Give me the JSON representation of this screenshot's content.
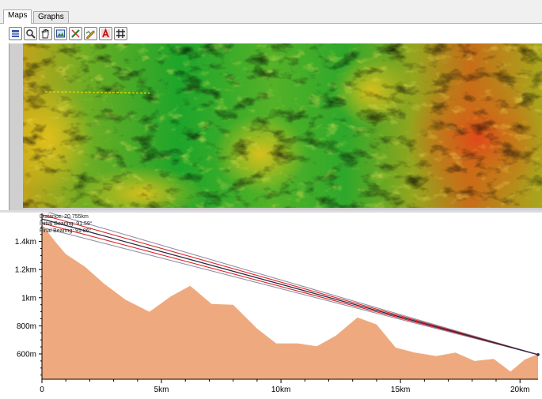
{
  "tabs": [
    {
      "label": "Maps",
      "active": true
    },
    {
      "label": "Graphs",
      "active": false
    }
  ],
  "toolbar": {
    "tools": [
      {
        "icon": "layers-icon"
      },
      {
        "icon": "zoom-icon"
      },
      {
        "icon": "pan-hand-icon"
      },
      {
        "icon": "full-extent-icon"
      },
      {
        "icon": "measure-icon"
      },
      {
        "icon": "profile-pen-icon"
      },
      {
        "icon": "label-icon"
      },
      {
        "icon": "grid-icon"
      }
    ]
  },
  "profile_info": {
    "distance": "Distance: 20.755km",
    "initial_bearing": "Initial Bearing: 91.59°",
    "final_bearing": "Final Bearing: 91.86°"
  },
  "colors": {
    "terrain_fill": "#eeaa7e",
    "line_of_sight": "#2a2a44",
    "fresnel_inner": "#e02020",
    "fresnel_outer": "#9090a8",
    "map_low": "#1fa82a",
    "map_mid": "#d8c21a",
    "map_high": "#cc5a16",
    "transect": "#e8e000"
  },
  "chart_data": {
    "type": "area",
    "xlabel": "",
    "ylabel": "",
    "xlim": [
      0,
      20.755
    ],
    "ylim": [
      420,
      1600
    ],
    "x_ticks": [
      {
        "value": 0,
        "label": "0"
      },
      {
        "value": 5,
        "label": "5km"
      },
      {
        "value": 10,
        "label": "10km"
      },
      {
        "value": 15,
        "label": "15km"
      },
      {
        "value": 20,
        "label": "20km"
      }
    ],
    "y_ticks": [
      {
        "value": 600,
        "label": "600m"
      },
      {
        "value": 800,
        "label": "800m"
      },
      {
        "value": 1000,
        "label": "1km"
      },
      {
        "value": 1200,
        "label": "1.2km"
      },
      {
        "value": 1400,
        "label": "1.4km"
      }
    ],
    "terrain_profile": {
      "x": [
        0,
        0.6,
        1.0,
        1.8,
        2.6,
        3.5,
        4.5,
        5.4,
        6.2,
        7.1,
        8.0,
        9.0,
        9.8,
        10.7,
        11.5,
        12.3,
        13.2,
        14.0,
        14.8,
        15.6,
        16.5,
        17.3,
        18.1,
        18.9,
        19.6,
        20.2,
        20.755
      ],
      "y": [
        1520,
        1390,
        1310,
        1220,
        1100,
        985,
        900,
        1010,
        1085,
        955,
        950,
        780,
        675,
        675,
        655,
        730,
        860,
        810,
        645,
        610,
        585,
        610,
        550,
        565,
        475,
        560,
        600
      ]
    },
    "line_of_sight": {
      "x": [
        0,
        20.755
      ],
      "y": [
        1560,
        595
      ]
    },
    "fresnel_offsets": [
      {
        "name": "inner",
        "offset": 30
      },
      {
        "name": "outer",
        "offset": 60
      }
    ]
  }
}
